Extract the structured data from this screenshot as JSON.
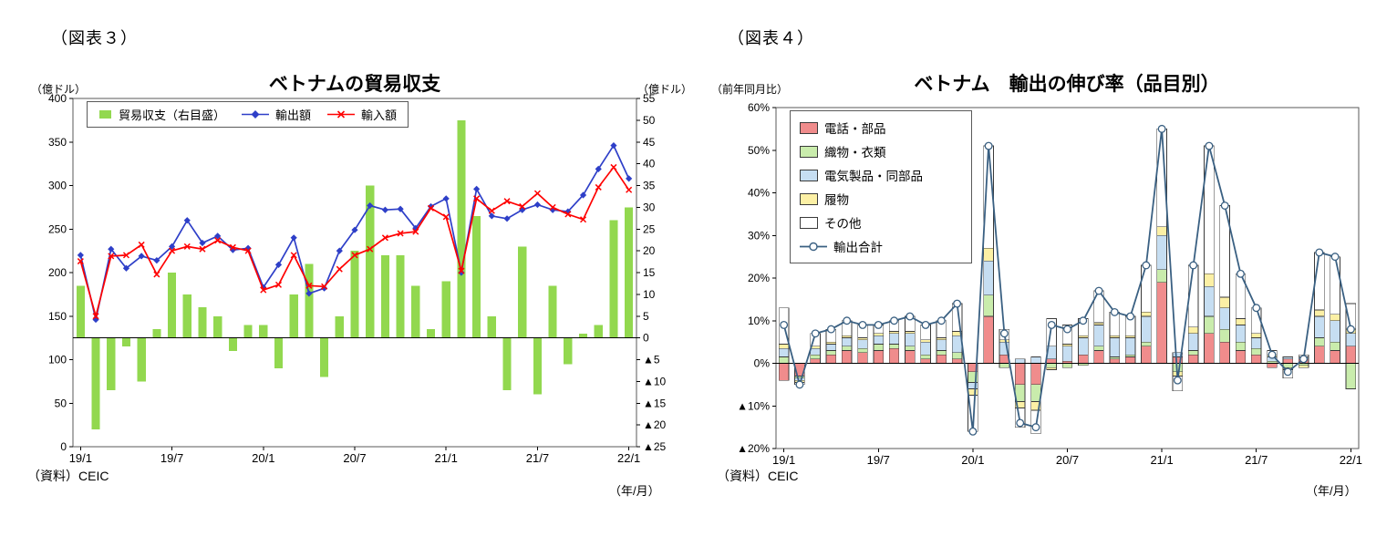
{
  "fig3": {
    "tag": "（図表３）",
    "title": "ベトナムの貿易収支",
    "y_left_unit": "（億ドル）",
    "y_right_unit": "（億ドル）",
    "source": "（資料）CEIC",
    "x_unit": "（年/月）"
  },
  "fig4": {
    "tag": "（図表４）",
    "title": "ベトナム　輸出の伸び率（品目別）",
    "y_unit": "（前年同月比）",
    "source": "（資料）CEIC",
    "x_unit": "（年/月）"
  },
  "chart_data": [
    {
      "type": "bar",
      "subtype": "bar+line dual-axis",
      "title": "ベトナムの貿易収支",
      "x_ticks": [
        "19/1",
        "19/7",
        "20/1",
        "20/7",
        "21/1",
        "21/7",
        "22/1"
      ],
      "x_unit": "（年/月）",
      "y_left": {
        "label": "（億ドル）",
        "min": 0,
        "max": 400,
        "step": 50
      },
      "y_right": {
        "label": "（億ドル）",
        "min": -25,
        "max": 55,
        "step": 5
      },
      "grid": false,
      "legend_position": "top-inside",
      "months": [
        "19/1",
        "19/2",
        "19/3",
        "19/4",
        "19/5",
        "19/6",
        "19/7",
        "19/8",
        "19/9",
        "19/10",
        "19/11",
        "19/12",
        "20/1",
        "20/2",
        "20/3",
        "20/4",
        "20/5",
        "20/6",
        "20/7",
        "20/8",
        "20/9",
        "20/10",
        "20/11",
        "20/12",
        "21/1",
        "21/2",
        "21/3",
        "21/4",
        "21/5",
        "21/6",
        "21/7",
        "21/8",
        "21/9",
        "21/10",
        "21/11",
        "21/12",
        "22/1"
      ],
      "series": [
        {
          "name": "貿易収支（右目盛）",
          "type": "bar",
          "axis": "right",
          "color": "#92D84F",
          "values": [
            12,
            -21,
            -12,
            -2,
            -10,
            2,
            15,
            10,
            7,
            5,
            -3,
            3,
            3,
            -7,
            10,
            17,
            -9,
            5,
            20,
            35,
            19,
            19,
            12,
            2,
            13,
            50,
            28,
            5,
            -12,
            21,
            -13,
            12,
            -6,
            1,
            3,
            27,
            30
          ]
        },
        {
          "name": "輸出額",
          "type": "line",
          "marker": "diamond",
          "axis": "left",
          "color": "#2E3FC8",
          "values": [
            220,
            146,
            227,
            205,
            219,
            214,
            230,
            260,
            234,
            242,
            226,
            228,
            183,
            209,
            240,
            176,
            182,
            225,
            249,
            277,
            272,
            273,
            251,
            276,
            285,
            200,
            296,
            265,
            262,
            272,
            278,
            272,
            270,
            289,
            319,
            346,
            308
          ]
        },
        {
          "name": "輸入額",
          "type": "line",
          "marker": "x",
          "axis": "left",
          "color": "#FF0000",
          "values": [
            213,
            150,
            219,
            220,
            232,
            198,
            225,
            230,
            227,
            237,
            229,
            225,
            180,
            186,
            220,
            185,
            184,
            204,
            220,
            227,
            240,
            245,
            247,
            274,
            264,
            202,
            285,
            271,
            282,
            276,
            291,
            275,
            267,
            261,
            298,
            321,
            295
          ]
        }
      ]
    },
    {
      "type": "bar",
      "subtype": "stacked-bar+line",
      "title": "ベトナム　輸出の伸び率（品目別）",
      "x_ticks": [
        "19/1",
        "19/7",
        "20/1",
        "20/7",
        "21/1",
        "21/7",
        "22/1"
      ],
      "x_unit": "（年/月）",
      "y": {
        "label": "（前年同月比）",
        "min": -20,
        "max": 60,
        "step": 10,
        "suffix": "%"
      },
      "grid": false,
      "legend_position": "top-left-inside",
      "months": [
        "19/1",
        "19/2",
        "19/3",
        "19/4",
        "19/5",
        "19/6",
        "19/7",
        "19/8",
        "19/9",
        "19/10",
        "19/11",
        "19/12",
        "20/1",
        "20/2",
        "20/3",
        "20/4",
        "20/5",
        "20/6",
        "20/7",
        "20/8",
        "20/9",
        "20/10",
        "20/11",
        "20/12",
        "21/1",
        "21/2",
        "21/3",
        "21/4",
        "21/5",
        "21/6",
        "21/7",
        "21/8",
        "21/9",
        "21/10",
        "21/11",
        "21/12",
        "22/1"
      ],
      "stack_series": [
        {
          "name": "電話・部品",
          "color": "#F08C8C",
          "values": [
            -4,
            -3,
            1,
            2,
            3,
            2.5,
            3,
            3.5,
            3,
            1,
            2,
            1,
            -2,
            11,
            2,
            -5,
            -5,
            1,
            0.5,
            2,
            3,
            1,
            1.5,
            4,
            19,
            1.5,
            2,
            7,
            5,
            3,
            2,
            -1,
            1,
            1,
            4,
            3,
            4
          ]
        },
        {
          "name": "織物・衣類",
          "color": "#C9ECAC",
          "values": [
            1.5,
            -0.5,
            1,
            1,
            1,
            1,
            1.5,
            1,
            1,
            1,
            1,
            1.5,
            -2.5,
            5,
            -1,
            -4,
            -4,
            -1,
            -1,
            -0.5,
            1,
            0.5,
            0.5,
            1,
            3,
            -2,
            1,
            4,
            3,
            2,
            1.5,
            0.5,
            -1,
            -0.5,
            2,
            2,
            -6
          ]
        },
        {
          "name": "電気製品・同部品",
          "color": "#C6DEF2",
          "values": [
            2,
            -0.5,
            1.5,
            1.5,
            2,
            2,
            2,
            2.5,
            3,
            3,
            2.5,
            4,
            -1.5,
            8,
            3,
            1,
            1.5,
            3,
            3.5,
            4,
            5,
            4.5,
            4,
            6,
            8,
            1,
            4,
            7,
            5,
            4,
            2.5,
            1,
            0.5,
            0.5,
            5,
            5,
            3
          ]
        },
        {
          "name": "履物",
          "color": "#FCF0A5",
          "values": [
            1,
            -0.5,
            0.5,
            0.5,
            0.5,
            0.5,
            0.5,
            0.5,
            0.5,
            0.5,
            0.5,
            1,
            -1.5,
            3,
            0.5,
            -1.5,
            -2,
            -0.5,
            0.5,
            0.5,
            0.5,
            0.5,
            0.5,
            1,
            2,
            -1,
            1.5,
            3,
            2.5,
            1.5,
            1,
            0.5,
            -0.5,
            -0.5,
            1.5,
            1.5,
            1
          ]
        },
        {
          "name": "その他",
          "color": "#FFFFFF",
          "values": [
            8.5,
            -0.5,
            3,
            3,
            3.5,
            3,
            2,
            2.5,
            3.5,
            3.5,
            4,
            6.5,
            -8.5,
            24,
            2.5,
            -4.5,
            -5.5,
            6.5,
            4.5,
            4,
            7.5,
            5.5,
            4.5,
            11,
            23,
            -3.5,
            14.5,
            30,
            21.5,
            10.5,
            6,
            1,
            -2,
            0.5,
            13.5,
            13.5,
            6
          ]
        }
      ],
      "line_series": {
        "name": "輸出合計",
        "marker": "circle",
        "color": "#3A6082",
        "values": [
          9,
          -5,
          7,
          8,
          10,
          9,
          9,
          10,
          11,
          9,
          10,
          14,
          -16,
          51,
          7,
          -14,
          -15,
          9,
          8,
          10,
          17,
          12,
          11,
          23,
          55,
          -4,
          23,
          51,
          37,
          21,
          13,
          2,
          -2,
          1,
          26,
          25,
          8
        ]
      }
    }
  ]
}
